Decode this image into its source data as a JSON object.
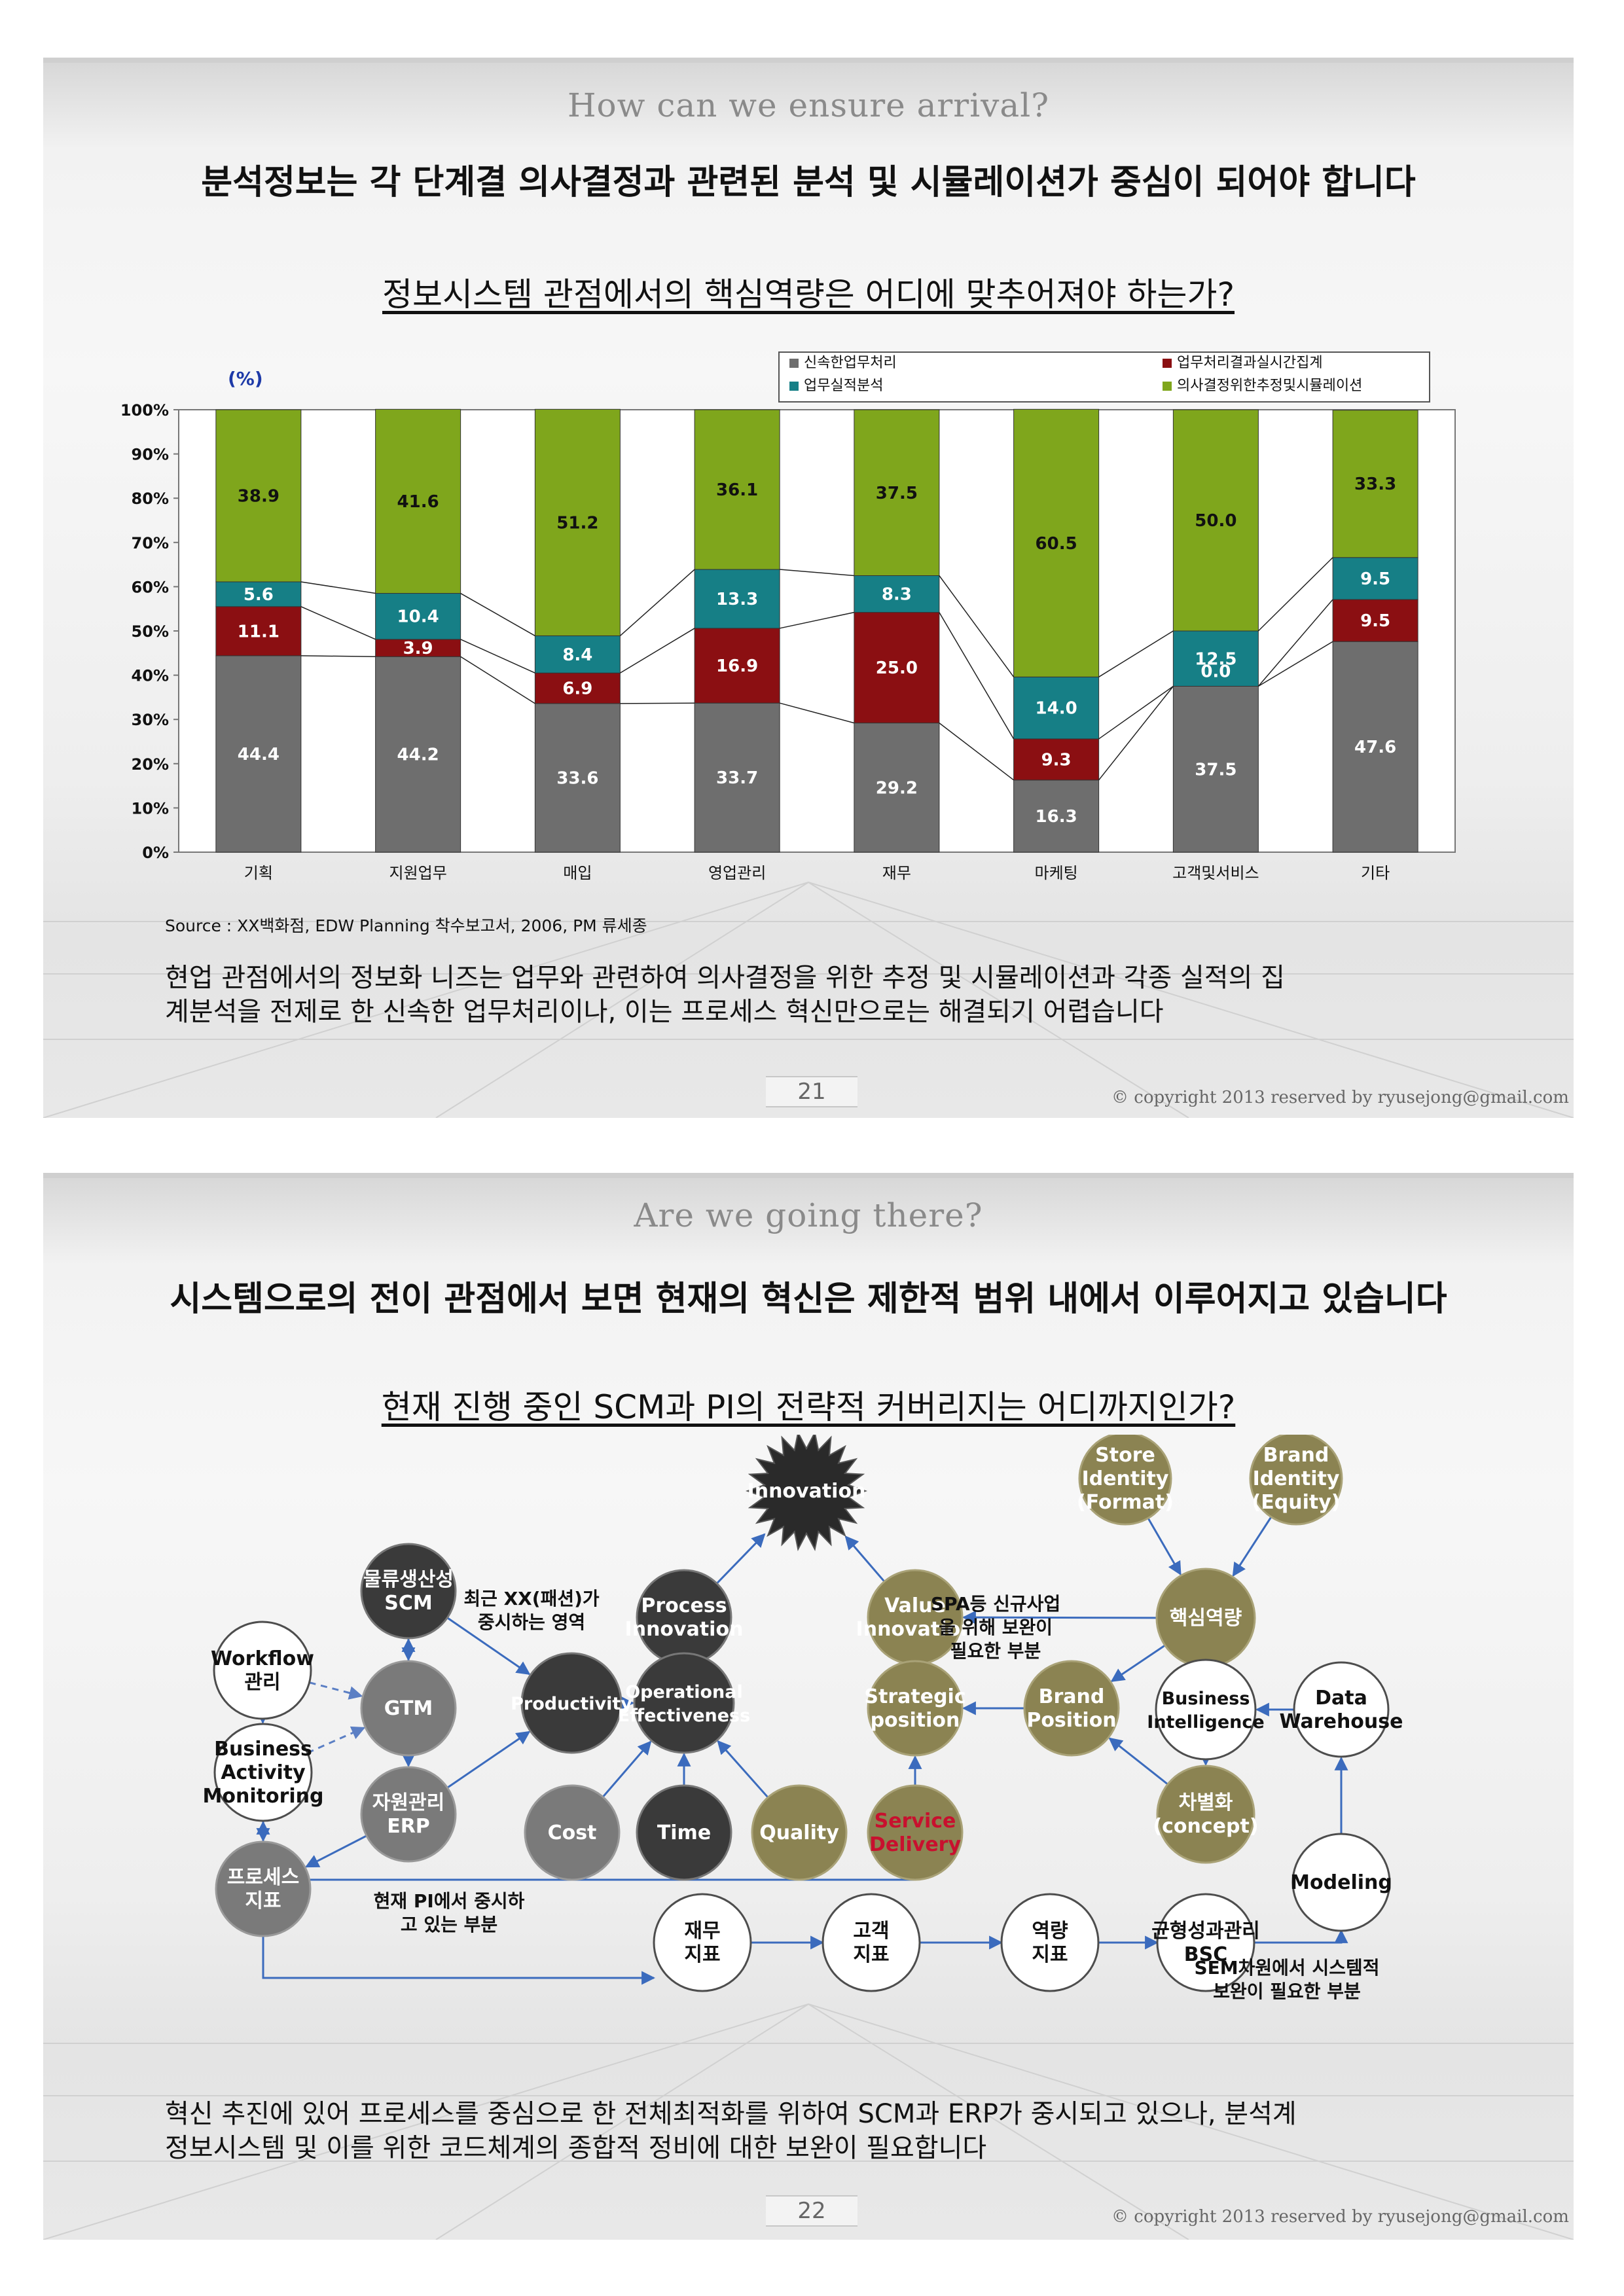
{
  "slide1": {
    "subtitle": "How can we ensure arrival?",
    "headline": "분석정보는 각 단계결 의사결정과 관련된 분석 및 시뮬레이션가 중심이 되어야 합니다",
    "question": "정보시스템 관점에서의 핵심역량은 어디에 맞추어져야 하는가?",
    "source": "Source : XX백화점, EDW Planning 착수보고서, 2006, PM 류세종",
    "paragraph_line1": "현업 관점에서의 정보화 니즈는 업무와 관련하여 의사결정을 위한 추정 및 시뮬레이션과 각종 실적의 집",
    "paragraph_line2": "계분석을 전제로 한 신속한 업무처리이나, 이는 프로세스 혁신만으로는 해결되기 어렵습니다",
    "page_number": "21",
    "copyright": "© copyright 2013 reserved by ryusejong@gmail.com"
  },
  "chart_data": {
    "type": "bar",
    "stacked": true,
    "unit_label": "(%)",
    "ylim": [
      0,
      100
    ],
    "yticks": [
      "0%",
      "10%",
      "20%",
      "30%",
      "40%",
      "50%",
      "60%",
      "70%",
      "80%",
      "90%",
      "100%"
    ],
    "categories": [
      "기획",
      "지원업무",
      "매입",
      "영업관리",
      "재무",
      "마케팅",
      "고객및서비스",
      "기타"
    ],
    "series": [
      {
        "name": "신속한업무처리",
        "color": "#6e6e6e",
        "values": [
          44.4,
          44.2,
          33.6,
          33.7,
          29.2,
          16.3,
          37.5,
          47.6
        ],
        "labels": [
          "44.4",
          "44.2",
          "33.6",
          "33.7",
          "29.2",
          "16.3",
          "37.5",
          "47.6"
        ]
      },
      {
        "name": "업무처리결과실시간집계",
        "color": "#8b0f12",
        "values": [
          11.1,
          3.9,
          6.9,
          16.9,
          25.0,
          9.3,
          0.0,
          9.5
        ],
        "labels": [
          "11.1",
          "3.9",
          "6.9",
          "16.9",
          "25.0",
          "9.3",
          "0.0",
          "9.5"
        ]
      },
      {
        "name": "업무실적분석",
        "color": "#167f86",
        "values": [
          5.6,
          10.4,
          8.4,
          13.3,
          8.3,
          14.0,
          12.5,
          9.5
        ],
        "labels": [
          "5.6",
          "10.4",
          "8.4",
          "13.3",
          "8.3",
          "14.0",
          "12.5",
          "9.5"
        ]
      },
      {
        "name": "의사결정위한추정및시뮬레이션",
        "color": "#7fa61c",
        "values": [
          38.9,
          41.6,
          51.2,
          36.1,
          37.5,
          60.5,
          50.0,
          33.3
        ],
        "labels": [
          "38.9",
          "41.6",
          "51.2",
          "36.1",
          "37.5",
          "60.5",
          "50.0",
          "33.3"
        ]
      }
    ],
    "legend": "top-right",
    "grid": false
  },
  "slide2": {
    "subtitle": "Are we going there?",
    "headline": "시스템으로의 전이 관점에서 보면 현재의 혁신은 제한적 범위 내에서 이루어지고 있습니다",
    "question": "현재 진행 중인 SCM과 PI의 전략적 커버리지는 어디까지인가?",
    "paragraph_line1": "혁신 추진에 있어 프로세스를 중심으로 한 전체최적화를 위하여 SCM과 ERP가 중시되고 있으나, 분석계",
    "paragraph_line2": "정보시스템 및 이를 위한 코드체계의 종합적 정비에 대한 보완이 필요합니다",
    "page_number": "22",
    "copyright": "© copyright 2013 reserved by ryusejong@gmail.com",
    "diagram": {
      "nodes": [
        {
          "id": "innovation",
          "lines": [
            "Innovation"
          ],
          "style": "star"
        },
        {
          "id": "store-identity",
          "lines": [
            "Store",
            "Identity",
            "(Format)"
          ],
          "style": "olive"
        },
        {
          "id": "brand-identity",
          "lines": [
            "Brand",
            "Identity",
            "(Equity)"
          ],
          "style": "olive"
        },
        {
          "id": "logistics-scm",
          "lines": [
            "물류생산성",
            "SCM"
          ],
          "style": "dark"
        },
        {
          "id": "process-innovation",
          "lines": [
            "Process",
            "Innovation"
          ],
          "style": "dark"
        },
        {
          "id": "value-innovation",
          "lines": [
            "Value",
            "Innovation"
          ],
          "style": "olive"
        },
        {
          "id": "core-competency",
          "lines": [
            "핵심역량"
          ],
          "style": "olive"
        },
        {
          "id": "workflow",
          "lines": [
            "Workflow",
            "관리"
          ],
          "style": "white"
        },
        {
          "id": "gtm",
          "lines": [
            "GTM"
          ],
          "style": "gray"
        },
        {
          "id": "productivity",
          "lines": [
            "Productivity"
          ],
          "style": "dark"
        },
        {
          "id": "operational-effectiveness",
          "lines": [
            "Operational",
            "Effectiveness"
          ],
          "style": "dark"
        },
        {
          "id": "strategic-position",
          "lines": [
            "Strategic",
            "position"
          ],
          "style": "olive"
        },
        {
          "id": "brand-position",
          "lines": [
            "Brand",
            "Position"
          ],
          "style": "olive"
        },
        {
          "id": "business-intelligence",
          "lines": [
            "Business",
            "Intelligence"
          ],
          "style": "white"
        },
        {
          "id": "data-warehouse",
          "lines": [
            "Data",
            "Warehouse"
          ],
          "style": "white"
        },
        {
          "id": "bam",
          "lines": [
            "Business",
            "Activity",
            "Monitoring"
          ],
          "style": "white"
        },
        {
          "id": "erp",
          "lines": [
            "자원관리",
            "ERP"
          ],
          "style": "gray"
        },
        {
          "id": "cost",
          "lines": [
            "Cost"
          ],
          "style": "gray"
        },
        {
          "id": "time",
          "lines": [
            "Time"
          ],
          "style": "dark"
        },
        {
          "id": "quality",
          "lines": [
            "Quality"
          ],
          "style": "olive"
        },
        {
          "id": "service-delivery",
          "lines": [
            "Service",
            "Delivery"
          ],
          "style": "olive-red"
        },
        {
          "id": "differentiation",
          "lines": [
            "차별화",
            "(concept)"
          ],
          "style": "olive"
        },
        {
          "id": "process-indicator",
          "lines": [
            "프로세스",
            "지표"
          ],
          "style": "gray"
        },
        {
          "id": "modeling",
          "lines": [
            "Modeling"
          ],
          "style": "white"
        },
        {
          "id": "finance-indicator",
          "lines": [
            "재무",
            "지표"
          ],
          "style": "white"
        },
        {
          "id": "customer-indicator",
          "lines": [
            "고객",
            "지표"
          ],
          "style": "white"
        },
        {
          "id": "capability-indicator",
          "lines": [
            "역량",
            "지표"
          ],
          "style": "white"
        },
        {
          "id": "bsc",
          "lines": [
            "균형성과관리",
            "BSC"
          ],
          "style": "white"
        }
      ],
      "notes": [
        {
          "id": "fashion-note",
          "lines": [
            "최근 XX(패션)가",
            "중시하는 영역"
          ]
        },
        {
          "id": "spa-note",
          "lines": [
            "SPA등 신규사업",
            "을 위해 보완이",
            "필요한 부분"
          ]
        },
        {
          "id": "pi-note",
          "lines": [
            "현재 PI에서 중시하",
            "고 있는 부분"
          ]
        },
        {
          "id": "sem-note",
          "lines": [
            "SEM차원에서 시스템적",
            "보완이 필요한 부분"
          ]
        }
      ]
    }
  }
}
